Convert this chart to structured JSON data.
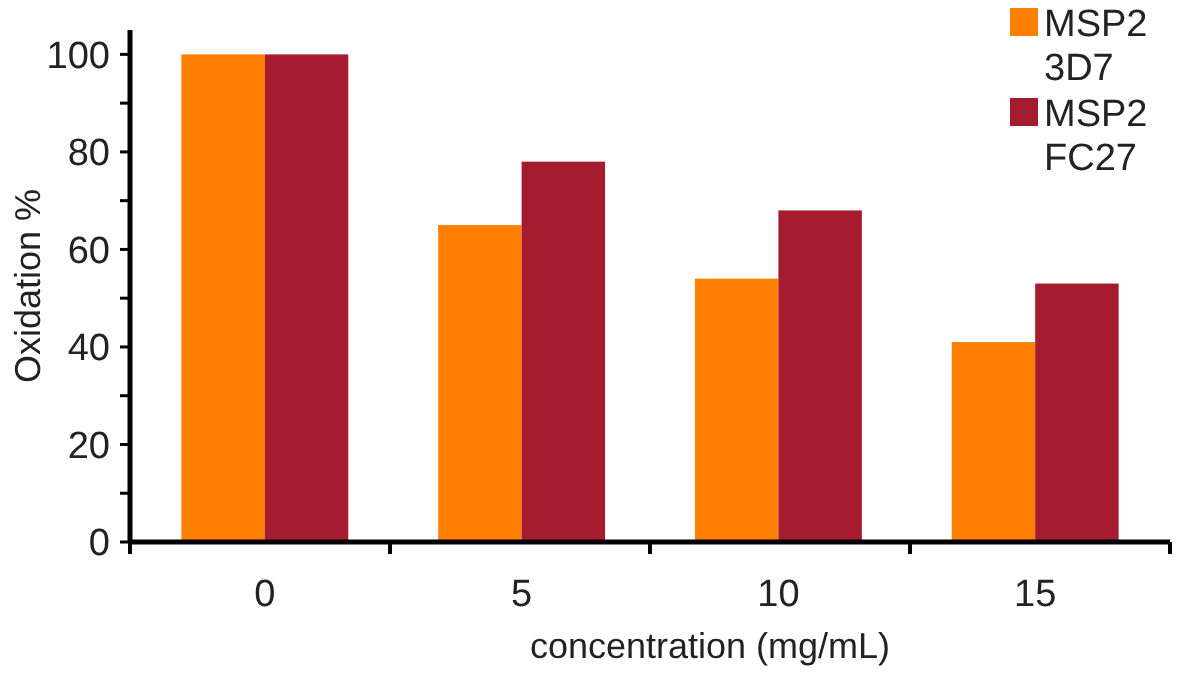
{
  "chart_data": {
    "type": "bar",
    "xlabel": "concentration (mg/mL)",
    "ylabel": "Oxidation %",
    "categories": [
      "0",
      "5",
      "10",
      "15"
    ],
    "series": [
      {
        "name": "MSP2 3D7",
        "color": "#ff8000",
        "values": [
          100,
          65,
          54,
          41
        ]
      },
      {
        "name": "MSP2 FC27",
        "color": "#a51c30",
        "values": [
          100,
          78,
          68,
          53
        ]
      }
    ],
    "ylim": [
      0,
      105
    ],
    "yticks": [
      0,
      {
        "value": 10,
        "label": null
      },
      20,
      {
        "value": 30,
        "label": null
      },
      40,
      {
        "value": 50,
        "label": null
      },
      60,
      {
        "value": 70,
        "label": null
      },
      80,
      {
        "value": 90,
        "label": null
      },
      100
    ],
    "grid": false,
    "legend": "top right"
  }
}
